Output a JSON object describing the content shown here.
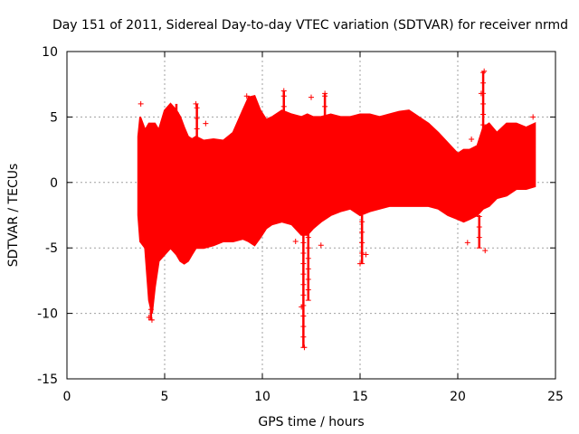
{
  "chart_data": {
    "type": "scatter",
    "title": "Day 151 of 2011, Sidereal Day-to-day VTEC variation (SDTVAR) for receiver nrmd",
    "xlabel": "GPS time / hours",
    "ylabel": "SDTVAR / TECUs",
    "xlim": [
      0,
      25
    ],
    "ylim": [
      -15,
      10
    ],
    "xticks": [
      0,
      5,
      10,
      15,
      20,
      25
    ],
    "yticks": [
      -15,
      -10,
      -5,
      0,
      5,
      10
    ],
    "grid": true,
    "marker": "+",
    "color": "#ff0000",
    "envelope": {
      "x": [
        3.65,
        3.75,
        4.0,
        4.2,
        4.35,
        4.5,
        4.7,
        5.0,
        5.3,
        5.6,
        5.8,
        6.0,
        6.2,
        6.4,
        6.6,
        7.0,
        7.5,
        8.0,
        8.5,
        9.0,
        9.3,
        9.6,
        9.9,
        10.2,
        10.5,
        11.0,
        11.5,
        12.0,
        12.3,
        12.6,
        13.0,
        13.5,
        14.0,
        14.5,
        15.0,
        15.5,
        16.0,
        16.5,
        17.0,
        17.5,
        18.0,
        18.5,
        19.0,
        19.5,
        20.0,
        20.3,
        20.6,
        21.0,
        21.3,
        21.6,
        22.0,
        22.5,
        23.0,
        23.5,
        23.95
      ],
      "upper": [
        3.5,
        5.0,
        4.0,
        4.5,
        4.5,
        4.5,
        4.0,
        5.5,
        6.0,
        5.5,
        5.0,
        4.2,
        3.5,
        3.3,
        3.5,
        3.2,
        3.3,
        3.2,
        3.8,
        5.5,
        6.5,
        6.6,
        5.5,
        4.8,
        5.0,
        5.5,
        5.2,
        5.0,
        5.2,
        5.0,
        5.0,
        5.2,
        5.0,
        5.0,
        5.2,
        5.2,
        5.0,
        5.2,
        5.4,
        5.5,
        5.0,
        4.5,
        3.8,
        3.0,
        2.2,
        2.5,
        2.5,
        2.8,
        4.2,
        4.5,
        3.8,
        4.5,
        4.5,
        4.2,
        4.5
      ],
      "lower": [
        -2.5,
        -4.5,
        -5.0,
        -9.0,
        -10.0,
        -8.0,
        -6.0,
        -5.5,
        -5.0,
        -5.5,
        -6.0,
        -6.2,
        -6.0,
        -5.5,
        -5.0,
        -5.0,
        -4.8,
        -4.5,
        -4.5,
        -4.3,
        -4.5,
        -4.8,
        -4.2,
        -3.5,
        -3.2,
        -3.0,
        -3.2,
        -4.0,
        -4.0,
        -3.5,
        -3.0,
        -2.5,
        -2.2,
        -2.0,
        -2.5,
        -2.2,
        -2.0,
        -1.8,
        -1.8,
        -1.8,
        -1.8,
        -1.8,
        -2.0,
        -2.5,
        -2.8,
        -3.0,
        -2.8,
        -2.5,
        -2.0,
        -1.8,
        -1.2,
        -1.0,
        -0.5,
        -0.5,
        -0.3
      ]
    },
    "outliers": [
      {
        "x": 3.78,
        "y": 6.0
      },
      {
        "x": 4.2,
        "y": -10.3
      },
      {
        "x": 4.35,
        "y": -10.5
      },
      {
        "x": 6.6,
        "y": 6.0
      },
      {
        "x": 7.1,
        "y": 4.5
      },
      {
        "x": 9.2,
        "y": 6.6
      },
      {
        "x": 11.1,
        "y": 7.0
      },
      {
        "x": 11.7,
        "y": -4.5
      },
      {
        "x": 12.0,
        "y": -9.5
      },
      {
        "x": 12.15,
        "y": -12.6
      },
      {
        "x": 12.5,
        "y": 6.5
      },
      {
        "x": 13.2,
        "y": 6.8
      },
      {
        "x": 13.0,
        "y": -4.8
      },
      {
        "x": 15.0,
        "y": -6.2
      },
      {
        "x": 15.3,
        "y": -5.5
      },
      {
        "x": 20.5,
        "y": -4.6
      },
      {
        "x": 20.7,
        "y": 3.3
      },
      {
        "x": 21.35,
        "y": 8.5
      },
      {
        "x": 21.4,
        "y": -5.2
      },
      {
        "x": 21.2,
        "y": 6.8
      },
      {
        "x": 23.85,
        "y": 5.0
      }
    ],
    "spikes": [
      {
        "x": 4.3,
        "from": -5.0,
        "to": -10.5
      },
      {
        "x": 5.6,
        "from": 4.5,
        "to": 6.0
      },
      {
        "x": 6.65,
        "from": 3.3,
        "to": 6.0
      },
      {
        "x": 9.3,
        "from": 4.5,
        "to": 6.6
      },
      {
        "x": 11.1,
        "from": 5.0,
        "to": 7.0
      },
      {
        "x": 12.1,
        "from": -4.0,
        "to": -12.6
      },
      {
        "x": 12.35,
        "from": -3.5,
        "to": -9.0
      },
      {
        "x": 13.2,
        "from": 5.0,
        "to": 6.8
      },
      {
        "x": 15.1,
        "from": -2.5,
        "to": -6.2
      },
      {
        "x": 21.3,
        "from": 2.8,
        "to": 8.5
      },
      {
        "x": 21.1,
        "from": -2.5,
        "to": -5.0
      }
    ]
  }
}
